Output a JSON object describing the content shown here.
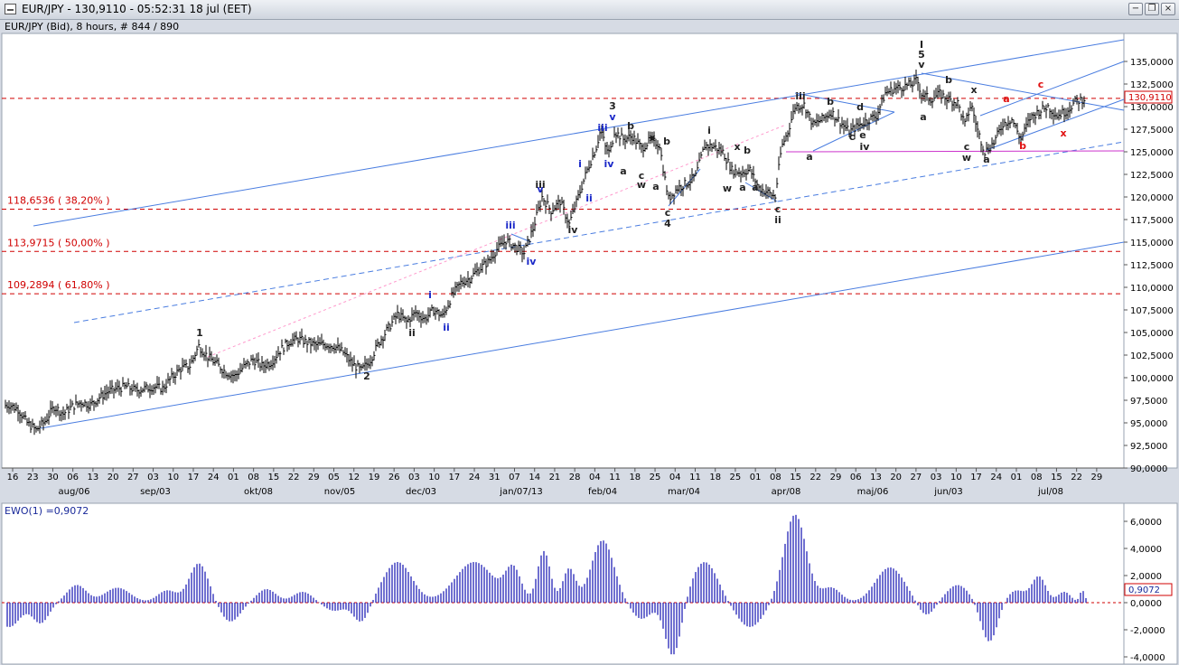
{
  "window": {
    "title": "EUR/JPY - 130,9110 - 05:52:31  18 jul (EET)",
    "minimize_glyph": "−",
    "restore_glyph": "❐",
    "close_glyph": "×"
  },
  "chart_data": [
    {
      "type": "ohlc",
      "title": "EUR/JPY (Bid), 8 hours, # 844 / 890",
      "last_price_label": "130,9110",
      "y_tick_labels": [
        "135,0000",
        "132,5000",
        "130,0000",
        "127,5000",
        "125,0000",
        "122,5000",
        "120,0000",
        "117,5000",
        "115,0000",
        "112,5000",
        "110,0000",
        "107,5000",
        "105,0000",
        "102,5000",
        "100,0000",
        "97,5000",
        "95,0000",
        "92,5000",
        "90,0000"
      ],
      "ylim": [
        90,
        135
      ],
      "x_day_labels": [
        "16",
        "23",
        "30",
        "06",
        "13",
        "20",
        "27",
        "03",
        "10",
        "17",
        "24",
        "01",
        "08",
        "15",
        "22",
        "29",
        "05",
        "12",
        "19",
        "26",
        "03",
        "10",
        "17",
        "24",
        "31",
        "07",
        "14",
        "21",
        "28",
        "04",
        "11",
        "18",
        "25",
        "04",
        "11",
        "18",
        "25",
        "01",
        "08",
        "15",
        "22",
        "29",
        "06",
        "13",
        "20",
        "27",
        "03",
        "10",
        "17",
        "24",
        "01",
        "08",
        "15",
        "22",
        "29"
      ],
      "x_month_labels": [
        "aug/06",
        "sep/03",
        "okt/08",
        "nov/05",
        "dec/03",
        "jan/07/13",
        "feb/04",
        "mar/04",
        "apr/08",
        "maj/06",
        "jun/03",
        "jul/08"
      ],
      "fib_levels": [
        {
          "label": "118,6536 ( 38,20% )",
          "value": 118.6536
        },
        {
          "label": "113,9715 ( 50,00% )",
          "value": 113.9715
        },
        {
          "label": "109,2894 ( 61,80% )",
          "value": 109.2894
        }
      ],
      "current_price": 130.911,
      "support_line": 125.0,
      "price_series": [
        [
          0,
          96.8
        ],
        [
          10,
          97.0
        ],
        [
          20,
          96.5
        ],
        [
          30,
          95.0
        ],
        [
          40,
          94.2
        ],
        [
          50,
          95.2
        ],
        [
          60,
          96.8
        ],
        [
          70,
          96.0
        ],
        [
          80,
          96.8
        ],
        [
          90,
          97.3
        ],
        [
          100,
          97.0
        ],
        [
          110,
          97.8
        ],
        [
          120,
          98.5
        ],
        [
          130,
          98.8
        ],
        [
          140,
          99.0
        ],
        [
          150,
          98.6
        ],
        [
          160,
          98.8
        ],
        [
          170,
          99.0
        ],
        [
          180,
          98.8
        ],
        [
          190,
          100.0
        ],
        [
          200,
          101.0
        ],
        [
          210,
          101.3
        ],
        [
          220,
          103.5
        ],
        [
          230,
          102.3
        ],
        [
          240,
          101.5
        ],
        [
          250,
          100.6
        ],
        [
          260,
          100.2
        ],
        [
          270,
          101.2
        ],
        [
          280,
          102.0
        ],
        [
          290,
          101.3
        ],
        [
          300,
          101.7
        ],
        [
          310,
          103.0
        ],
        [
          320,
          104.0
        ],
        [
          330,
          104.3
        ],
        [
          340,
          103.9
        ],
        [
          350,
          103.6
        ],
        [
          360,
          103.7
        ],
        [
          370,
          103.5
        ],
        [
          380,
          102.8
        ],
        [
          390,
          101.5
        ],
        [
          400,
          100.8
        ],
        [
          410,
          102.0
        ],
        [
          420,
          104.0
        ],
        [
          430,
          105.5
        ],
        [
          440,
          107.0
        ],
        [
          450,
          106.2
        ],
        [
          460,
          107.2
        ],
        [
          470,
          106.5
        ],
        [
          480,
          107.5
        ],
        [
          490,
          106.8
        ],
        [
          500,
          109.0
        ],
        [
          510,
          110.5
        ],
        [
          520,
          111.0
        ],
        [
          530,
          112.0
        ],
        [
          540,
          112.8
        ],
        [
          550,
          114.2
        ],
        [
          560,
          115.2
        ],
        [
          570,
          114.5
        ],
        [
          580,
          113.8
        ],
        [
          590,
          116.5
        ],
        [
          600,
          120.0
        ],
        [
          610,
          118.5
        ],
        [
          620,
          119.5
        ],
        [
          630,
          117.0
        ],
        [
          640,
          120.0
        ],
        [
          650,
          123.0
        ],
        [
          660,
          125.5
        ],
        [
          665,
          127.5
        ],
        [
          670,
          125.5
        ],
        [
          675,
          124.8
        ],
        [
          680,
          127.3
        ],
        [
          690,
          126.4
        ],
        [
          700,
          126.7
        ],
        [
          710,
          125.4
        ],
        [
          720,
          126.3
        ],
        [
          730,
          125.8
        ],
        [
          735,
          122.5
        ],
        [
          740,
          119.8
        ],
        [
          750,
          121.0
        ],
        [
          760,
          121.5
        ],
        [
          770,
          122.3
        ],
        [
          780,
          125.7
        ],
        [
          790,
          125.6
        ],
        [
          800,
          125.0
        ],
        [
          810,
          123.0
        ],
        [
          820,
          122.7
        ],
        [
          830,
          123.0
        ],
        [
          840,
          121.0
        ],
        [
          850,
          120.5
        ],
        [
          858,
          120.0
        ],
        [
          865,
          125.5
        ],
        [
          872,
          127.2
        ],
        [
          880,
          130.0
        ],
        [
          890,
          130.2
        ],
        [
          900,
          128.0
        ],
        [
          910,
          128.6
        ],
        [
          920,
          129.4
        ],
        [
          930,
          128.3
        ],
        [
          940,
          127.2
        ],
        [
          950,
          127.9
        ],
        [
          960,
          128.5
        ],
        [
          970,
          129.0
        ],
        [
          980,
          131.5
        ],
        [
          990,
          132.0
        ],
        [
          1000,
          132.2
        ],
        [
          1010,
          132.5
        ],
        [
          1015,
          133.0
        ],
        [
          1020,
          131.4
        ],
        [
          1030,
          130.8
        ],
        [
          1040,
          131.4
        ],
        [
          1050,
          130.8
        ],
        [
          1060,
          130.4
        ],
        [
          1068,
          128.0
        ],
        [
          1075,
          130.3
        ],
        [
          1082,
          127.4
        ],
        [
          1090,
          125.0
        ],
        [
          1100,
          126.0
        ],
        [
          1110,
          128.1
        ],
        [
          1120,
          128.6
        ],
        [
          1130,
          126.4
        ],
        [
          1140,
          128.7
        ],
        [
          1150,
          129.5
        ],
        [
          1160,
          130.0
        ],
        [
          1170,
          129.0
        ],
        [
          1180,
          129.5
        ],
        [
          1190,
          130.5
        ],
        [
          1200,
          130.9
        ]
      ],
      "wave_labels": [
        {
          "text": "1",
          "x": 221,
          "p": 104.6,
          "color": "black"
        },
        {
          "text": "2",
          "x": 406,
          "p": 99.8,
          "color": "black"
        },
        {
          "text": "i",
          "x": 476,
          "p": 108.8,
          "color": "blue"
        },
        {
          "text": "ii",
          "x": 456,
          "p": 104.6,
          "color": "black"
        },
        {
          "text": "ii",
          "x": 494,
          "p": 105.2,
          "color": "blue"
        },
        {
          "text": "iii",
          "x": 565,
          "p": 116.5,
          "color": "blue"
        },
        {
          "text": "iv",
          "x": 588,
          "p": 112.5,
          "color": "blue"
        },
        {
          "text": "v",
          "x": 598,
          "p": 120.5,
          "color": "blue"
        },
        {
          "text": "iii",
          "x": 598,
          "p": 121.0,
          "color": "black"
        },
        {
          "text": "iv",
          "x": 634,
          "p": 116.0,
          "color": "black"
        },
        {
          "text": "i",
          "x": 642,
          "p": 123.3,
          "color": "blue"
        },
        {
          "text": "ii",
          "x": 652,
          "p": 119.5,
          "color": "blue"
        },
        {
          "text": "iii",
          "x": 667,
          "p": 127.3,
          "color": "blue"
        },
        {
          "text": "iv",
          "x": 674,
          "p": 123.3,
          "color": "blue"
        },
        {
          "text": "3",
          "x": 678,
          "p": 129.7,
          "color": "black"
        },
        {
          "text": "v",
          "x": 678,
          "p": 128.5,
          "color": "blue"
        },
        {
          "text": "b",
          "x": 698,
          "p": 127.5,
          "color": "black"
        },
        {
          "text": "a",
          "x": 690,
          "p": 122.5,
          "color": "black"
        },
        {
          "text": "c",
          "x": 710,
          "p": 122.0,
          "color": "black"
        },
        {
          "text": "w",
          "x": 710,
          "p": 121.0,
          "color": "black"
        },
        {
          "text": "x",
          "x": 722,
          "p": 126.2,
          "color": "black"
        },
        {
          "text": "a",
          "x": 726,
          "p": 120.8,
          "color": "black"
        },
        {
          "text": "b",
          "x": 738,
          "p": 125.8,
          "color": "black"
        },
        {
          "text": "c",
          "x": 739,
          "p": 117.9,
          "color": "black"
        },
        {
          "text": "4",
          "x": 739,
          "p": 116.7,
          "color": "black"
        },
        {
          "text": "i",
          "x": 785,
          "p": 127.0,
          "color": "black"
        },
        {
          "text": "x",
          "x": 816,
          "p": 125.2,
          "color": "black"
        },
        {
          "text": "b",
          "x": 827,
          "p": 124.8,
          "color": "black"
        },
        {
          "text": "w",
          "x": 805,
          "p": 120.6,
          "color": "black"
        },
        {
          "text": "a",
          "x": 822,
          "p": 120.7,
          "color": "black"
        },
        {
          "text": "a",
          "x": 836,
          "p": 120.7,
          "color": "black"
        },
        {
          "text": "c",
          "x": 861,
          "p": 118.3,
          "color": "black"
        },
        {
          "text": "ii",
          "x": 861,
          "p": 117.1,
          "color": "black"
        },
        {
          "text": "iii",
          "x": 886,
          "p": 130.8,
          "color": "black"
        },
        {
          "text": "a",
          "x": 896,
          "p": 124.1,
          "color": "black"
        },
        {
          "text": "b",
          "x": 919,
          "p": 130.2,
          "color": "black"
        },
        {
          "text": "c",
          "x": 943,
          "p": 126.3,
          "color": "black"
        },
        {
          "text": "e",
          "x": 955,
          "p": 126.5,
          "color": "black"
        },
        {
          "text": "iv",
          "x": 957,
          "p": 125.2,
          "color": "black"
        },
        {
          "text": "d",
          "x": 952,
          "p": 129.6,
          "color": "black"
        },
        {
          "text": "I",
          "x": 1020,
          "p": 136.5,
          "color": "black"
        },
        {
          "text": "5",
          "x": 1020,
          "p": 135.4,
          "color": "black"
        },
        {
          "text": "v",
          "x": 1020,
          "p": 134.3,
          "color": "black"
        },
        {
          "text": "b",
          "x": 1050,
          "p": 132.6,
          "color": "black"
        },
        {
          "text": "a",
          "x": 1022,
          "p": 128.5,
          "color": "black"
        },
        {
          "text": "x",
          "x": 1078,
          "p": 131.5,
          "color": "black"
        },
        {
          "text": "c",
          "x": 1070,
          "p": 125.2,
          "color": "black"
        },
        {
          "text": "w",
          "x": 1070,
          "p": 124.0,
          "color": "black"
        },
        {
          "text": "a",
          "x": 1092,
          "p": 123.8,
          "color": "black"
        },
        {
          "text": "a",
          "x": 1114,
          "p": 130.5,
          "color": "red"
        },
        {
          "text": "b",
          "x": 1132,
          "p": 125.3,
          "color": "red"
        },
        {
          "text": "c",
          "x": 1152,
          "p": 132.1,
          "color": "red"
        },
        {
          "text": "x",
          "x": 1177,
          "p": 126.7,
          "color": "red"
        }
      ]
    },
    {
      "type": "bar",
      "title": "EWO(1) =0,9072",
      "last_value_label": "0,9072",
      "y_tick_labels": [
        "6,0000",
        "4,0000",
        "2,0000",
        "0,0000",
        "-2,0000",
        "-4,0000"
      ],
      "ylim": [
        -4,
        6.5
      ],
      "last_value": 0.9072
    }
  ]
}
